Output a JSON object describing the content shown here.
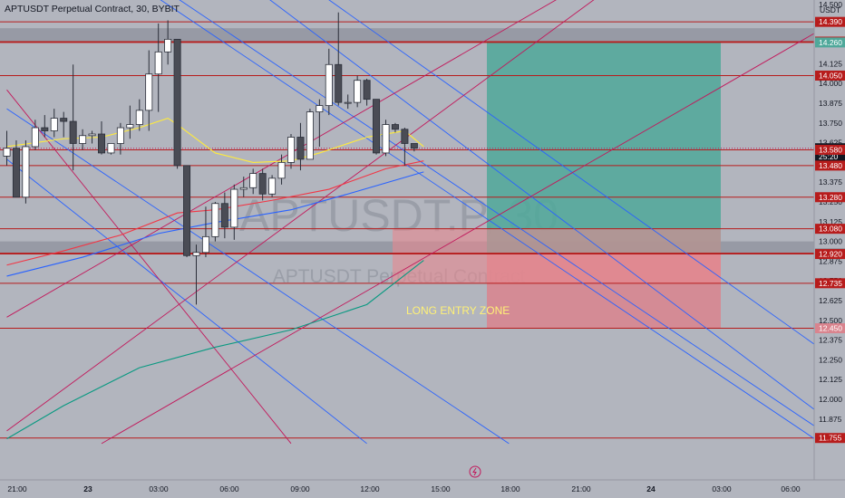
{
  "header": {
    "title": "APTUSDT Perpetual Contract, 30, BYBIT",
    "currency": "USDT"
  },
  "watermark": {
    "symbol": "APTUSDT.P, 30",
    "description": "APTUSDT Perpetual Contract"
  },
  "annotations": {
    "zone_label": "LONG ENTRY ZONE"
  },
  "price_scale": {
    "ticks": [
      "14.500",
      "14.250",
      "14.125",
      "14.000",
      "13.875",
      "13.750",
      "13.625",
      "13.500",
      "13.375",
      "13.250",
      "13.125",
      "13.000",
      "12.875",
      "12.750",
      "12.625",
      "12.500",
      "12.375",
      "12.250",
      "12.125",
      "12.000",
      "11.875"
    ]
  },
  "time_axis": {
    "ticks": [
      "21:00",
      "23",
      "03:00",
      "06:00",
      "09:00",
      "12:00",
      "15:00",
      "18:00",
      "21:00",
      "24",
      "03:00",
      "06:00"
    ]
  },
  "colors": {
    "background": "#b2b5be",
    "up_candle": "#ffffff",
    "down_candle": "#4a4c55",
    "hline": "#b71c1c",
    "diag_blue": "#2962ff",
    "diag_pink": "#c2185b",
    "ma_yellow": "#ffeb3b",
    "ma_red": "#f23645",
    "ma_blue": "#2962ff",
    "ma_green": "#089981",
    "profit_zone": "#4fa89a",
    "loss_zone": "#d9848e",
    "current_price": "#131722"
  },
  "chart_data": {
    "type": "candlestick",
    "symbol": "APTUSDT Perpetual Contract",
    "exchange": "BYBIT",
    "timeframe": "30",
    "ylim": [
      11.75,
      14.56
    ],
    "candles": [
      {
        "o": 13.54,
        "h": 13.7,
        "l": 13.48,
        "c": 13.59
      },
      {
        "o": 13.59,
        "h": 13.64,
        "l": 13.28,
        "c": 13.28
      },
      {
        "o": 13.28,
        "h": 13.64,
        "l": 13.24,
        "c": 13.6
      },
      {
        "o": 13.6,
        "h": 13.77,
        "l": 13.58,
        "c": 13.72
      },
      {
        "o": 13.72,
        "h": 13.8,
        "l": 13.66,
        "c": 13.7
      },
      {
        "o": 13.7,
        "h": 13.84,
        "l": 13.66,
        "c": 13.78
      },
      {
        "o": 13.78,
        "h": 13.82,
        "l": 13.66,
        "c": 13.76
      },
      {
        "o": 13.76,
        "h": 14.12,
        "l": 13.45,
        "c": 13.62
      },
      {
        "o": 13.62,
        "h": 13.71,
        "l": 13.58,
        "c": 13.67
      },
      {
        "o": 13.67,
        "h": 13.7,
        "l": 13.62,
        "c": 13.68
      },
      {
        "o": 13.68,
        "h": 13.76,
        "l": 13.55,
        "c": 13.56
      },
      {
        "o": 13.56,
        "h": 13.62,
        "l": 13.55,
        "c": 13.62
      },
      {
        "o": 13.62,
        "h": 13.75,
        "l": 13.55,
        "c": 13.72
      },
      {
        "o": 13.72,
        "h": 13.86,
        "l": 13.65,
        "c": 13.74
      },
      {
        "o": 13.74,
        "h": 13.9,
        "l": 13.7,
        "c": 13.83
      },
      {
        "o": 13.83,
        "h": 14.21,
        "l": 13.7,
        "c": 14.06
      },
      {
        "o": 14.06,
        "h": 14.38,
        "l": 13.82,
        "c": 14.2
      },
      {
        "o": 14.2,
        "h": 14.4,
        "l": 14.12,
        "c": 14.28
      },
      {
        "o": 14.28,
        "h": 14.28,
        "l": 13.46,
        "c": 13.48
      },
      {
        "o": 13.48,
        "h": 13.48,
        "l": 12.9,
        "c": 12.91
      },
      {
        "o": 12.91,
        "h": 12.98,
        "l": 12.6,
        "c": 12.93
      },
      {
        "o": 12.93,
        "h": 13.22,
        "l": 12.9,
        "c": 13.03
      },
      {
        "o": 13.03,
        "h": 13.25,
        "l": 13.0,
        "c": 13.24
      },
      {
        "o": 13.24,
        "h": 13.31,
        "l": 13.02,
        "c": 13.09
      },
      {
        "o": 13.09,
        "h": 13.36,
        "l": 13.01,
        "c": 13.33
      },
      {
        "o": 13.33,
        "h": 13.41,
        "l": 13.28,
        "c": 13.34
      },
      {
        "o": 13.34,
        "h": 13.46,
        "l": 13.3,
        "c": 13.43
      },
      {
        "o": 13.43,
        "h": 13.46,
        "l": 13.26,
        "c": 13.3
      },
      {
        "o": 13.3,
        "h": 13.42,
        "l": 13.28,
        "c": 13.4
      },
      {
        "o": 13.4,
        "h": 13.55,
        "l": 13.36,
        "c": 13.5
      },
      {
        "o": 13.5,
        "h": 13.68,
        "l": 13.46,
        "c": 13.66
      },
      {
        "o": 13.66,
        "h": 13.75,
        "l": 13.45,
        "c": 13.52
      },
      {
        "o": 13.52,
        "h": 13.84,
        "l": 13.52,
        "c": 13.82
      },
      {
        "o": 13.82,
        "h": 13.9,
        "l": 13.6,
        "c": 13.86
      },
      {
        "o": 13.86,
        "h": 14.22,
        "l": 13.8,
        "c": 14.12
      },
      {
        "o": 14.12,
        "h": 14.45,
        "l": 13.86,
        "c": 13.88
      },
      {
        "o": 13.88,
        "h": 13.93,
        "l": 13.84,
        "c": 13.88
      },
      {
        "o": 13.88,
        "h": 14.05,
        "l": 13.85,
        "c": 14.02
      },
      {
        "o": 14.02,
        "h": 14.03,
        "l": 13.86,
        "c": 13.9
      },
      {
        "o": 13.9,
        "h": 13.9,
        "l": 13.55,
        "c": 13.56
      },
      {
        "o": 13.56,
        "h": 13.77,
        "l": 13.54,
        "c": 13.74
      },
      {
        "o": 13.74,
        "h": 13.75,
        "l": 13.69,
        "c": 13.71
      },
      {
        "o": 13.71,
        "h": 13.72,
        "l": 13.48,
        "c": 13.62
      },
      {
        "o": 13.62,
        "h": 13.62,
        "l": 13.57,
        "c": 13.59
      }
    ],
    "horizontal_levels": [
      14.39,
      14.265,
      14.26,
      14.05,
      13.58,
      13.48,
      13.28,
      13.08,
      12.925,
      12.92,
      12.735,
      12.45,
      11.755
    ],
    "zones": [
      {
        "name": "resistance",
        "from": 14.26,
        "to": 14.35
      },
      {
        "name": "support",
        "from": 12.92,
        "to": 13.0
      }
    ],
    "long_position": {
      "entry": 12.92,
      "take_profit": 14.26,
      "stop_loss": 12.45
    },
    "entry_zone": {
      "label": "LONG ENTRY ZONE",
      "from": 12.735,
      "to": 13.08
    },
    "price_labels": [
      {
        "value": "14.390",
        "price": 14.39,
        "style": "red"
      },
      {
        "value": "14.265",
        "price": 14.265,
        "style": "red"
      },
      {
        "value": "14.260",
        "price": 14.26,
        "style": "teal"
      },
      {
        "value": "14.050",
        "price": 14.05,
        "style": "red"
      },
      {
        "value": "13.590",
        "price": 13.59,
        "style": "current",
        "sub": "25:20"
      },
      {
        "value": "13.580",
        "price": 13.58,
        "style": "red"
      },
      {
        "value": "13.480",
        "price": 13.48,
        "style": "red"
      },
      {
        "value": "13.280",
        "price": 13.28,
        "style": "red"
      },
      {
        "value": "13.080",
        "price": 13.08,
        "style": "red"
      },
      {
        "value": "12.925",
        "price": 12.925,
        "style": "gray"
      },
      {
        "value": "12.920",
        "price": 12.92,
        "style": "red"
      },
      {
        "value": "12.735",
        "price": 12.735,
        "style": "red"
      },
      {
        "value": "12.450",
        "price": 12.45,
        "style": "pink"
      },
      {
        "value": "11.755",
        "price": 11.755,
        "style": "red"
      }
    ],
    "moving_averages": [
      {
        "color": "yellow",
        "points": [
          [
            0,
            13.6
          ],
          [
            6,
            13.65
          ],
          [
            10,
            13.66
          ],
          [
            14,
            13.72
          ],
          [
            17,
            13.78
          ],
          [
            18,
            13.74
          ],
          [
            22,
            13.56
          ],
          [
            26,
            13.5
          ],
          [
            30,
            13.51
          ],
          [
            33,
            13.56
          ],
          [
            38,
            13.66
          ],
          [
            42,
            13.7
          ],
          [
            44,
            13.6
          ]
        ]
      },
      {
        "color": "red",
        "points": [
          [
            0,
            12.85
          ],
          [
            6,
            12.94
          ],
          [
            12,
            13.04
          ],
          [
            18,
            13.18
          ],
          [
            22,
            13.2
          ],
          [
            28,
            13.26
          ],
          [
            34,
            13.33
          ],
          [
            40,
            13.46
          ],
          [
            44,
            13.51
          ]
        ]
      },
      {
        "color": "blue",
        "points": [
          [
            0,
            12.78
          ],
          [
            8,
            12.9
          ],
          [
            16,
            13.05
          ],
          [
            22,
            13.12
          ],
          [
            30,
            13.2
          ],
          [
            36,
            13.3
          ],
          [
            44,
            13.44
          ]
        ]
      },
      {
        "color": "green",
        "points": [
          [
            0,
            11.75
          ],
          [
            6,
            11.96
          ],
          [
            14,
            12.2
          ],
          [
            22,
            12.33
          ],
          [
            30,
            12.44
          ],
          [
            38,
            12.6
          ],
          [
            44,
            12.88
          ]
        ]
      }
    ],
    "trendlines": [
      {
        "color": "blue",
        "from": [
          0,
          13.84
        ],
        "to": [
          53,
          11.72
        ]
      },
      {
        "color": "blue",
        "from": [
          0,
          13.52
        ],
        "to": [
          38,
          11.72
        ]
      },
      {
        "color": "blue",
        "from": [
          12,
          14.7
        ],
        "to": [
          86,
          11.72
        ]
      },
      {
        "color": "blue",
        "from": [
          14,
          14.7
        ],
        "to": [
          88,
          11.72
        ]
      },
      {
        "color": "blue",
        "from": [
          24,
          14.7
        ],
        "to": [
          90,
          11.72
        ]
      },
      {
        "color": "blue",
        "from": [
          30,
          14.7
        ],
        "to": [
          100,
          11.72
        ]
      },
      {
        "color": "pink",
        "from": [
          0,
          12.52
        ],
        "to": [
          60,
          14.6
        ]
      },
      {
        "color": "pink",
        "from": [
          0,
          11.8
        ],
        "to": [
          64,
          14.62
        ]
      },
      {
        "color": "pink",
        "from": [
          0,
          13.96
        ],
        "to": [
          30,
          11.72
        ]
      },
      {
        "color": "pink",
        "from": [
          10,
          11.72
        ],
        "to": [
          94,
          14.62
        ]
      }
    ]
  }
}
